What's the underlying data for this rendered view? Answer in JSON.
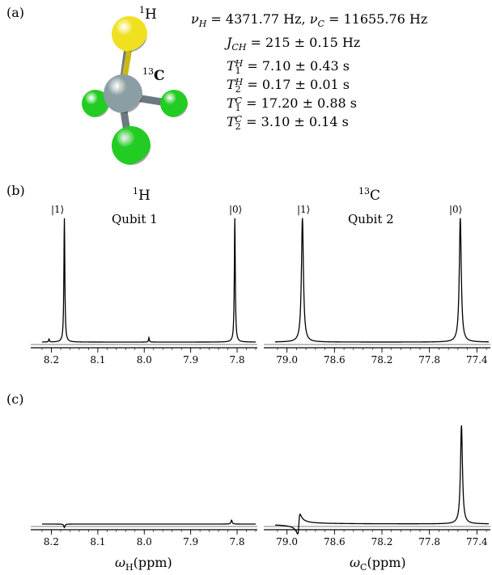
{
  "labels": {
    "a": "(a)",
    "b": "(b)",
    "c": "(c)"
  },
  "molecule": {
    "h_label": "H",
    "h_mass": "1",
    "c_label": "C",
    "c_mass": "13",
    "colors": {
      "H": "#f0e020",
      "C": "#8a9ea4",
      "Cl": "#22cc22",
      "bond": "#6a7a80"
    }
  },
  "params": [
    {
      "first": true,
      "text": "νH = 4371.77 Hz, νC = 11655.76 Hz",
      "parts": [
        "ν",
        "H",
        " = 4371.77 Hz, ",
        "ν",
        "C",
        " = 11655.76 Hz"
      ]
    },
    {
      "text": "JCH = 215 ± 0.15 Hz",
      "parts": [
        "J",
        "CH",
        " = 215 ± 0.15 Hz"
      ]
    },
    {
      "text": "T1H = 7.10 ± 0.43 s",
      "sym": "T",
      "sub": "1",
      "sup": "H",
      "rest": " = 7.10 ± 0.43 s"
    },
    {
      "text": "T2H = 0.17 ± 0.01 s",
      "sym": "T",
      "sub": "2",
      "sup": "H",
      "rest": " = 0.17 ± 0.01 s"
    },
    {
      "text": "T1C = 17.20 ± 0.88 s",
      "sym": "T",
      "sub": "1",
      "sup": "C",
      "rest": " = 17.20 ± 0.88 s"
    },
    {
      "text": "T2C = 3.10 ± 0.14 s",
      "sym": "T",
      "sub": "2",
      "sup": "C",
      "rest": " = 3.10 ± 0.14 s"
    }
  ],
  "titles": {
    "h": {
      "mass": "1",
      "sym": "H"
    },
    "c": {
      "mass": "13",
      "sym": "C"
    }
  },
  "qubits": {
    "q1": "Qubit 1",
    "q2": "Qubit 2"
  },
  "kets": {
    "one": "|1⟩",
    "zero": "|0⟩"
  },
  "xlabels": {
    "h": {
      "sym": "ω",
      "sub": "H",
      "unit": "(ppm)"
    },
    "c": {
      "sym": "ω",
      "sub": "C",
      "unit": "(ppm)"
    }
  },
  "chart_data": [
    {
      "id": "b-H",
      "type": "line",
      "xlim": [
        8.22,
        7.76
      ],
      "ylim": [
        -0.02,
        1.05
      ],
      "xticks": [
        8.2,
        8.1,
        8.0,
        7.9,
        7.8
      ],
      "xticklabels": [
        "8.2",
        "8.1",
        "8.0",
        "7.9",
        "7.8"
      ],
      "peaks": [
        {
          "x": 8.172,
          "height": 1.0,
          "width": 0.0012
        },
        {
          "x": 7.805,
          "height": 1.0,
          "width": 0.0012
        },
        {
          "x": 7.99,
          "height": 0.035,
          "width": 0.001
        },
        {
          "x": 8.205,
          "height": 0.025,
          "width": 0.001
        }
      ],
      "xlabel": "",
      "ylabel": ""
    },
    {
      "id": "b-C",
      "type": "line",
      "xlim": [
        79.1,
        77.3
      ],
      "ylim": [
        -0.02,
        1.05
      ],
      "xticks": [
        79.0,
        78.6,
        78.2,
        77.8,
        77.4
      ],
      "xticklabels": [
        "79.0",
        "78.6",
        "78.2",
        "77.8",
        "77.4"
      ],
      "peaks": [
        {
          "x": 78.87,
          "height": 1.0,
          "width": 0.01
        },
        {
          "x": 77.54,
          "height": 1.0,
          "width": 0.01
        }
      ],
      "xlabel": "",
      "ylabel": ""
    },
    {
      "id": "c-H",
      "type": "line",
      "xlim": [
        8.22,
        7.76
      ],
      "ylim": [
        -0.06,
        1.05
      ],
      "xticks": [
        8.2,
        8.1,
        8.0,
        7.9,
        7.8
      ],
      "xticklabels": [
        "8.2",
        "8.1",
        "8.0",
        "7.9",
        "7.8"
      ],
      "peaks": [
        {
          "x": 8.172,
          "height": -0.035,
          "width": 0.0015
        },
        {
          "x": 7.812,
          "height": 0.04,
          "width": 0.0015
        }
      ],
      "xlabel": "ωH(ppm)",
      "ylabel": ""
    },
    {
      "id": "c-C",
      "type": "line",
      "xlim": [
        79.1,
        77.3
      ],
      "ylim": [
        -0.06,
        1.05
      ],
      "xticks": [
        79.0,
        78.6,
        78.2,
        77.8,
        77.4
      ],
      "xticklabels": [
        "79.0",
        "78.6",
        "78.2",
        "77.8",
        "77.4"
      ],
      "peaks": [
        {
          "x": 78.9,
          "height": 0.1,
          "width": 0.01,
          "dispersive": true
        },
        {
          "x": 77.53,
          "height": 1.0,
          "width": 0.01
        }
      ],
      "xlabel": "ωC(ppm)",
      "ylabel": ""
    }
  ]
}
